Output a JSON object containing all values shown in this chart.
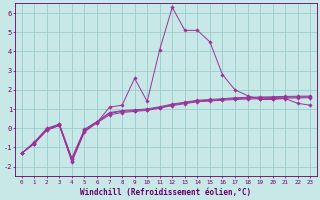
{
  "xlabel": "Windchill (Refroidissement éolien,°C)",
  "background_color": "#c8e8e8",
  "grid_color": "#99cccc",
  "line_color": "#993399",
  "x_values": [
    0,
    1,
    2,
    3,
    4,
    5,
    6,
    7,
    8,
    9,
    10,
    11,
    12,
    13,
    14,
    15,
    16,
    17,
    18,
    19,
    20,
    21,
    22,
    23
  ],
  "series": [
    [
      -1.3,
      -0.8,
      -0.1,
      0.15,
      -1.75,
      -0.2,
      0.3,
      1.1,
      1.2,
      2.6,
      1.4,
      4.1,
      6.3,
      5.1,
      5.1,
      4.5,
      2.8,
      2.0,
      1.7,
      1.5,
      1.5,
      1.55,
      1.3,
      1.2
    ],
    [
      -1.3,
      -0.8,
      -0.1,
      0.15,
      -1.7,
      -0.15,
      0.28,
      0.7,
      0.82,
      0.88,
      0.93,
      1.05,
      1.18,
      1.28,
      1.38,
      1.42,
      1.46,
      1.5,
      1.52,
      1.54,
      1.55,
      1.57,
      1.58,
      1.59
    ],
    [
      -1.3,
      -0.75,
      -0.05,
      0.2,
      -1.6,
      -0.1,
      0.32,
      0.78,
      0.88,
      0.92,
      0.97,
      1.08,
      1.22,
      1.32,
      1.42,
      1.46,
      1.5,
      1.55,
      1.57,
      1.59,
      1.6,
      1.62,
      1.63,
      1.64
    ],
    [
      -1.3,
      -0.72,
      0.0,
      0.22,
      -1.55,
      -0.05,
      0.35,
      0.82,
      0.92,
      0.96,
      1.01,
      1.12,
      1.26,
      1.36,
      1.46,
      1.5,
      1.54,
      1.59,
      1.61,
      1.63,
      1.64,
      1.66,
      1.67,
      1.68
    ]
  ],
  "xlim": [
    -0.5,
    23.5
  ],
  "ylim": [
    -2.5,
    6.5
  ],
  "yticks": [
    -2,
    -1,
    0,
    1,
    2,
    3,
    4,
    5,
    6
  ],
  "xticks": [
    0,
    1,
    2,
    3,
    4,
    5,
    6,
    7,
    8,
    9,
    10,
    11,
    12,
    13,
    14,
    15,
    16,
    17,
    18,
    19,
    20,
    21,
    22,
    23
  ],
  "xtick_labels": [
    "0",
    "1",
    "2",
    "3",
    "4",
    "5",
    "6",
    "7",
    "8",
    "9",
    "10",
    "11",
    "12",
    "13",
    "14",
    "15",
    "16",
    "17",
    "18",
    "19",
    "20",
    "21",
    "22",
    "23"
  ]
}
